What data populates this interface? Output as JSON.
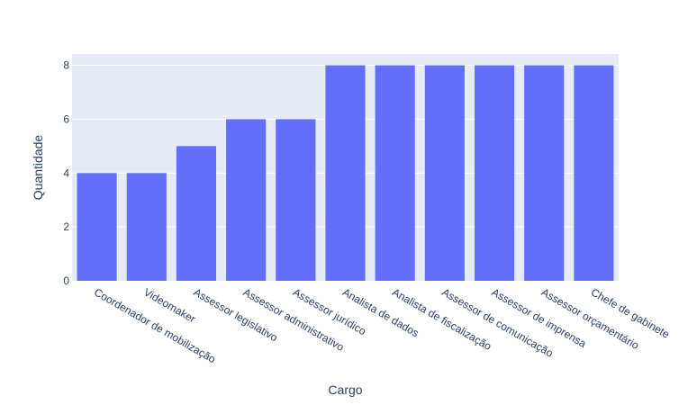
{
  "chart_data": {
    "type": "bar",
    "title": "",
    "xlabel": "Cargo",
    "ylabel": "Quantidade",
    "categories": [
      "Coordenador de mobilização",
      "Videomaker",
      "Assessor legislativo",
      "Assessor administrativo",
      "Assessor jurídico",
      "Analista de dados",
      "Analista de fiscalização",
      "Assessor de comunicação",
      "Assessor de imprensa",
      "Assessor orçamentário",
      "Chefe de gabinete"
    ],
    "values": [
      4,
      4,
      5,
      6,
      6,
      8,
      8,
      8,
      8,
      8,
      8
    ],
    "ylim": [
      0,
      8.42
    ],
    "yticks": [
      0,
      2,
      4,
      6,
      8
    ],
    "grid": true,
    "legend": "none"
  },
  "colors": {
    "bar": "#636efa",
    "plot_bg": "#e5ecf6",
    "grid": "#ffffff",
    "text": "#2a3f5f"
  }
}
